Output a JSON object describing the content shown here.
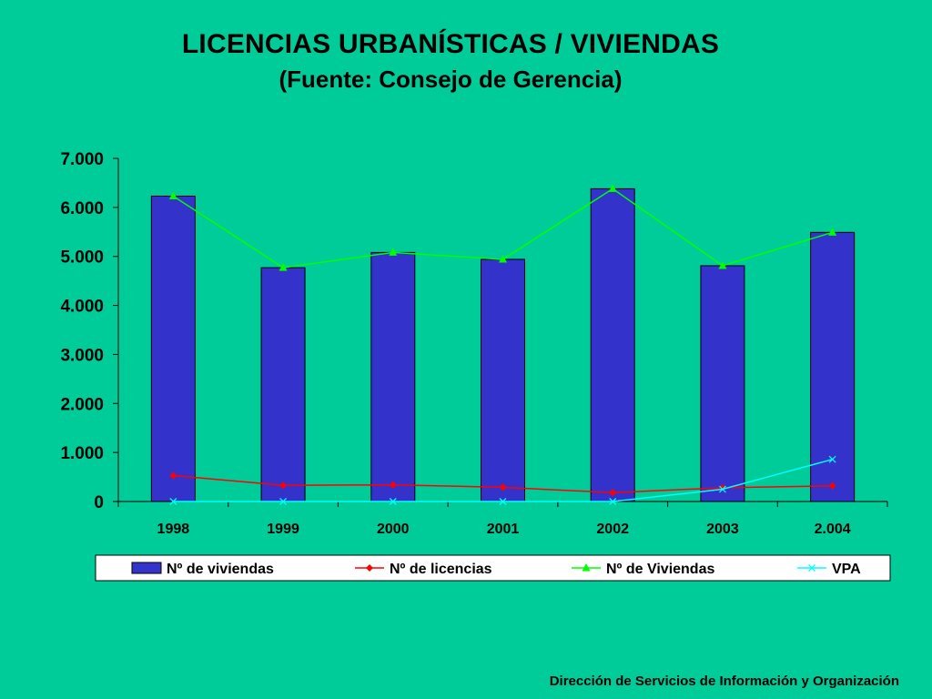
{
  "chart_data": {
    "type": "bar",
    "title": "LICENCIAS URBANÍSTICAS / VIVIENDAS",
    "subtitle": "(Fuente: Consejo de Gerencia)",
    "categories": [
      "1998",
      "1999",
      "2000",
      "2001",
      "2002",
      "2003",
      "2.004"
    ],
    "ylim": [
      0,
      7000
    ],
    "yticks": [
      "0",
      "1.000",
      "2.000",
      "3.000",
      "4.000",
      "5.000",
      "6.000",
      "7.000"
    ],
    "grid": false,
    "legend_position": "bottom",
    "series": [
      {
        "name": "Nº de viviendas",
        "kind": "bar",
        "color": "#3333CC",
        "values": [
          6230,
          4770,
          5080,
          4940,
          6380,
          4810,
          5490
        ]
      },
      {
        "name": "Nº de licencias",
        "kind": "line",
        "marker": "diamond",
        "color": "#FF0000",
        "values": [
          530,
          330,
          340,
          290,
          180,
          280,
          320
        ]
      },
      {
        "name": "Nº de Viviendas",
        "kind": "line",
        "marker": "triangle",
        "color": "#00FF00",
        "values": [
          6230,
          4770,
          5080,
          4940,
          6380,
          4810,
          5490
        ]
      },
      {
        "name": "VPA",
        "kind": "line",
        "marker": "x",
        "color": "#00FFFF",
        "values": [
          0,
          0,
          0,
          0,
          0,
          250,
          860
        ]
      }
    ]
  },
  "footer": "Dirección de Servicios de  Información y Organización"
}
